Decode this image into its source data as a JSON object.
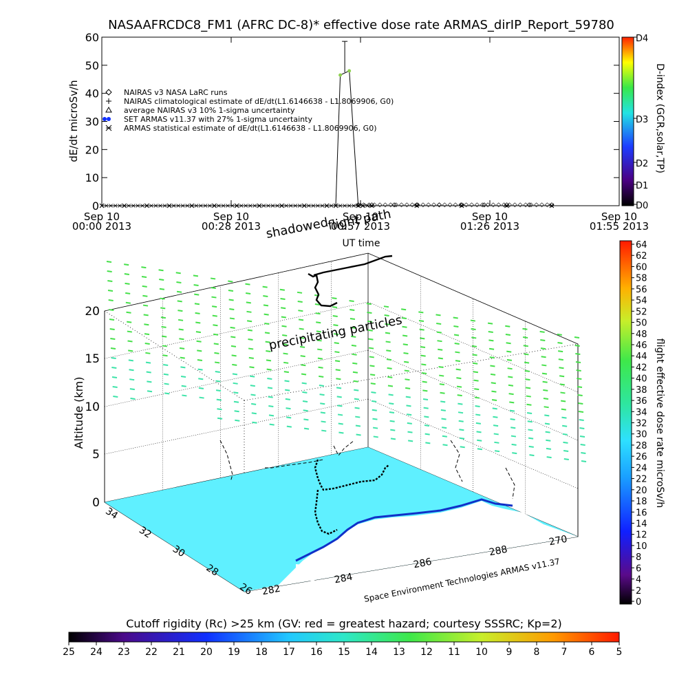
{
  "title": "NASAAFRCDC8_FM1 (AFRC DC-8)* effective dose rate ARMAS_dirIP_Report_59780",
  "chart_data": [
    {
      "type": "line",
      "ylabel": "dE/dt microSv/h",
      "xlabel": "UT time",
      "ylim": [
        0,
        60
      ],
      "y_ticks": [
        "0",
        "10",
        "20",
        "30",
        "40",
        "50",
        "60"
      ],
      "x_ticks": [
        {
          "date": "Sep 10",
          "time": "00:00 2013"
        },
        {
          "date": "Sep 10",
          "time": "00:28 2013"
        },
        {
          "date": "Sep 10",
          "time": "00:57 2013"
        },
        {
          "date": "Sep 10",
          "time": "01:26 2013"
        },
        {
          "date": "Sep 10",
          "time": "01:55 2013"
        }
      ],
      "xlim_minutes": [
        0,
        115
      ],
      "legend": [
        {
          "label": "NAIRAS v3 NASA LaRC runs",
          "marker": "diamond"
        },
        {
          "label": "NAIRAS climatological estimate of dE/dt(L1.6146638 - L1.8069906, G0)",
          "marker": "plus"
        },
        {
          "label": "average NAIRAS v3 10% 1-sigma uncertainty",
          "marker": "triangle"
        },
        {
          "label": "SET ARMAS v11.37 with 27% 1-sigma uncertainty",
          "marker": "dot"
        },
        {
          "label": "ARMAS statistical estimate of dE/dt(L1.6146638 - L1.8069906, G0)",
          "marker": "star"
        }
      ],
      "series": [
        {
          "name": "SET ARMAS v11.37 with 27% 1-sigma uncertainty",
          "x": [
            0,
            5,
            10,
            15,
            20,
            25,
            30,
            35,
            40,
            45,
            50,
            52,
            53,
            55,
            57,
            58,
            60,
            70,
            80,
            90,
            100
          ],
          "y": [
            0,
            0,
            0,
            0,
            0,
            0,
            0,
            0,
            0,
            0,
            0,
            0,
            46.5,
            48,
            0,
            0,
            0,
            0,
            0,
            0,
            0
          ],
          "error_peak": {
            "x": 54,
            "y": 47.5,
            "upper": 58.5
          }
        },
        {
          "name": "NAIRAS v3 NASA LaRC runs",
          "x": [
            57,
            60,
            65,
            70,
            75,
            80,
            85,
            90,
            95,
            100
          ],
          "y": [
            0.3,
            0.3,
            0.3,
            0.3,
            0.3,
            0.3,
            0.3,
            0.3,
            0.3,
            0.3
          ]
        }
      ],
      "colorbar": {
        "label": "D-index (GCR,solar,TP)",
        "ticks": [
          "D4",
          "D3",
          "D2",
          "D1",
          "D0"
        ]
      }
    },
    {
      "type": "scatter",
      "zlabel": "Altitude (km)",
      "z_ticks": [
        "0",
        "5",
        "10",
        "15",
        "20"
      ],
      "lat_ticks": [
        "34",
        "32",
        "30",
        "28",
        "26"
      ],
      "lon_ticks": [
        "282",
        "284",
        "286",
        "288",
        "270"
      ],
      "annotations": [
        "shadowed",
        "flight path",
        "precipitating particles"
      ],
      "credit": "Space Environment Technologies ARMAS v11.37",
      "colorbar": {
        "label": "flight effective dose rate microSv/h",
        "ticks": [
          "64",
          "62",
          "60",
          "58",
          "56",
          "54",
          "52",
          "50",
          "48",
          "46",
          "44",
          "42",
          "40",
          "38",
          "36",
          "34",
          "32",
          "30",
          "28",
          "26",
          "24",
          "22",
          "20",
          "18",
          "16",
          "14",
          "12",
          "10",
          "8",
          "6",
          "4",
          "2",
          "0"
        ]
      }
    }
  ],
  "bottom_colorbar": {
    "label": "Cutoff rigidity (Rc) >25 km (GV: red = greatest hazard; courtesy SSSRC; Kp=2)",
    "ticks": [
      "25",
      "24",
      "23",
      "22",
      "21",
      "20",
      "19",
      "18",
      "17",
      "16",
      "15",
      "14",
      "13",
      "12",
      "11",
      "10",
      "9",
      "8",
      "7",
      "6",
      "5"
    ]
  },
  "colors": {
    "ocean": "#5ff0ff",
    "land": "#ffffff",
    "dose_green": "#46e04a",
    "dose_cyan": "#3ce3a8",
    "peak": "#8fd14f"
  }
}
